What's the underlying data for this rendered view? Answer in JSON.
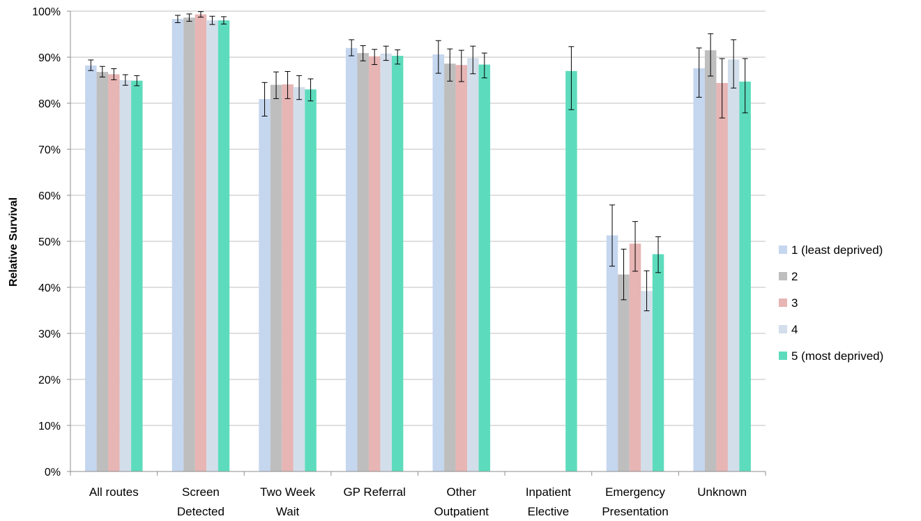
{
  "chart_data": {
    "type": "bar",
    "title": "",
    "xlabel": "",
    "ylabel": "Relative Survival",
    "ylim": [
      0,
      100
    ],
    "yticks": [
      "0%",
      "10%",
      "20%",
      "30%",
      "40%",
      "50%",
      "60%",
      "70%",
      "80%",
      "90%",
      "100%"
    ],
    "grid": "horizontal",
    "legend_position": "right",
    "categories": [
      [
        "All routes"
      ],
      [
        "Screen",
        "Detected"
      ],
      [
        "Two Week",
        "Wait"
      ],
      [
        "GP Referral"
      ],
      [
        "Other",
        "Outpatient"
      ],
      [
        "Inpatient",
        "Elective"
      ],
      [
        "Emergency",
        "Presentation"
      ],
      [
        "Unknown"
      ]
    ],
    "series": [
      {
        "name": "1 (least deprived)",
        "color": "#c5d6ef",
        "values": [
          88.2,
          98.3,
          80.9,
          92.0,
          90.6,
          null,
          51.3,
          87.6
        ],
        "err_low": [
          87.1,
          97.5,
          77.2,
          90.3,
          86.5,
          null,
          44.6,
          81.3
        ],
        "err_high": [
          89.4,
          99.1,
          84.5,
          93.8,
          93.6,
          null,
          57.9,
          92.0
        ]
      },
      {
        "name": "2",
        "color": "#bebebe",
        "values": [
          86.8,
          98.6,
          84.0,
          90.9,
          88.6,
          null,
          42.8,
          91.5
        ],
        "err_low": [
          85.7,
          97.8,
          81.0,
          89.2,
          84.8,
          null,
          37.3,
          85.9
        ],
        "err_high": [
          88.0,
          99.4,
          86.8,
          92.5,
          91.8,
          null,
          48.3,
          95.1
        ]
      },
      {
        "name": "3",
        "color": "#e6b5b4",
        "values": [
          86.3,
          99.3,
          84.1,
          90.2,
          88.3,
          null,
          49.5,
          84.4
        ],
        "err_low": [
          85.1,
          98.7,
          81.0,
          88.4,
          84.7,
          null,
          43.5,
          76.8
        ],
        "err_high": [
          87.5,
          99.9,
          86.9,
          91.7,
          91.5,
          null,
          54.3,
          89.7
        ]
      },
      {
        "name": "4",
        "color": "#d3deeb",
        "values": [
          85.0,
          98.0,
          83.5,
          90.8,
          89.8,
          null,
          39.2,
          89.5
        ],
        "err_low": [
          83.9,
          97.1,
          80.8,
          89.3,
          86.4,
          null,
          34.9,
          83.3
        ],
        "err_high": [
          86.2,
          98.9,
          86.0,
          92.4,
          92.4,
          null,
          43.6,
          93.8
        ]
      },
      {
        "name": "5 (most deprived)",
        "color": "#5ddcbd",
        "values": [
          84.9,
          98.0,
          83.0,
          90.3,
          88.4,
          87.0,
          47.2,
          84.7
        ],
        "err_low": [
          83.8,
          97.2,
          80.5,
          88.5,
          85.5,
          78.6,
          43.2,
          77.9
        ],
        "err_high": [
          86.0,
          98.8,
          85.3,
          91.6,
          90.9,
          92.3,
          51.0,
          89.7
        ]
      }
    ]
  }
}
